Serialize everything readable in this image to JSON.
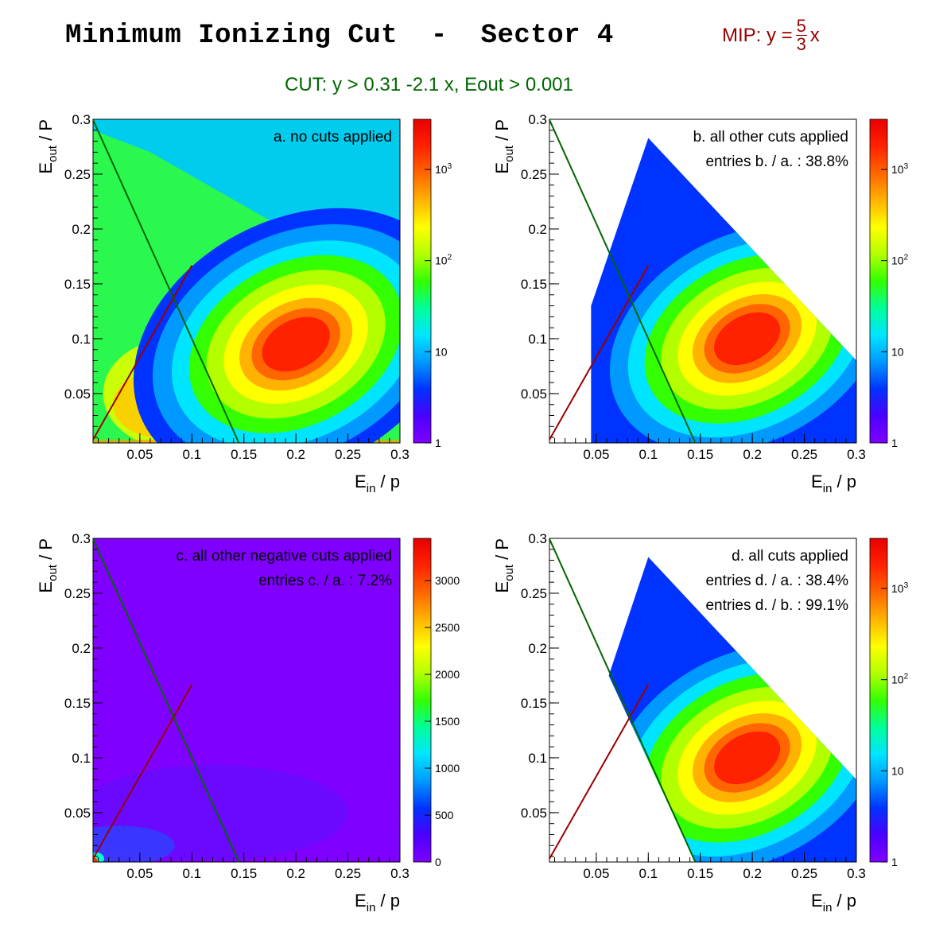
{
  "header": {
    "title": "Minimum Ionizing Cut  -  Sector 4",
    "mip_prefix": "MIP:  y =",
    "mip_num": "5",
    "mip_den": "3",
    "mip_suffix": "x",
    "cut_label": "CUT:  y > 0.31 -2.1 x, Eout > 0.001"
  },
  "colors": {
    "mip_line": "#990000",
    "cut_line": "#006600"
  },
  "chart_data": [
    {
      "type": "heatmap",
      "id": "a",
      "xlabel_main": "E",
      "xlabel_sub": "in",
      "xlabel_tail": " / p",
      "ylabel_main": "E",
      "ylabel_sub": "out",
      "ylabel_tail": " / P",
      "xlim": [
        0.005,
        0.3
      ],
      "ylim": [
        0.005,
        0.3
      ],
      "xticks": [
        "0.05",
        "0.1",
        "0.15",
        "0.2",
        "0.25",
        "0.3"
      ],
      "yticks": [
        "0.05",
        "0.1",
        "0.15",
        "0.2",
        "0.25",
        "0.3"
      ],
      "annotations": [
        "a. no cuts applied"
      ],
      "z_scale": "log",
      "zticks": [
        "1",
        "10",
        "10^2",
        "10^3"
      ],
      "lines": [
        {
          "name": "MIP",
          "x": [
            0.005,
            0.1
          ],
          "y": [
            0.008,
            0.1667
          ]
        },
        {
          "name": "CUT",
          "x": [
            0.005,
            0.1452
          ],
          "y": [
            0.2995,
            0.005
          ]
        }
      ]
    },
    {
      "type": "heatmap",
      "id": "b",
      "xlabel_main": "E",
      "xlabel_sub": "in",
      "xlabel_tail": " / p",
      "ylabel_main": "E",
      "ylabel_sub": "out",
      "ylabel_tail": " / P",
      "xlim": [
        0.005,
        0.3
      ],
      "ylim": [
        0.005,
        0.3
      ],
      "xticks": [
        "0.05",
        "0.1",
        "0.15",
        "0.2",
        "0.25",
        "0.3"
      ],
      "yticks": [
        "0.05",
        "0.1",
        "0.15",
        "0.2",
        "0.25",
        "0.3"
      ],
      "annotations": [
        "b. all other cuts applied",
        "entries b. / a. : 38.8%"
      ],
      "z_scale": "log",
      "zticks": [
        "1",
        "10",
        "10^2",
        "10^3"
      ],
      "lines": [
        {
          "name": "MIP",
          "x": [
            0.005,
            0.1
          ],
          "y": [
            0.008,
            0.1667
          ]
        },
        {
          "name": "CUT",
          "x": [
            0.005,
            0.1452
          ],
          "y": [
            0.2995,
            0.005
          ]
        }
      ]
    },
    {
      "type": "heatmap",
      "id": "c",
      "xlabel_main": "E",
      "xlabel_sub": "in",
      "xlabel_tail": " / p",
      "ylabel_main": "E",
      "ylabel_sub": "out",
      "ylabel_tail": " / P",
      "xlim": [
        0.005,
        0.3
      ],
      "ylim": [
        0.005,
        0.3
      ],
      "xticks": [
        "0.05",
        "0.1",
        "0.15",
        "0.2",
        "0.25",
        "0.3"
      ],
      "yticks": [
        "0.05",
        "0.1",
        "0.15",
        "0.2",
        "0.25",
        "0.3"
      ],
      "annotations": [
        "c. all other negative cuts applied",
        "entries c. / a. : 7.2%"
      ],
      "z_scale": "linear",
      "zlim": [
        0,
        3450
      ],
      "zticks": [
        "0",
        "500",
        "1000",
        "1500",
        "2000",
        "2500",
        "3000"
      ],
      "lines": [
        {
          "name": "MIP",
          "x": [
            0.005,
            0.1
          ],
          "y": [
            0.008,
            0.1667
          ]
        },
        {
          "name": "CUT",
          "x": [
            0.005,
            0.1452
          ],
          "y": [
            0.2995,
            0.005
          ]
        }
      ]
    },
    {
      "type": "heatmap",
      "id": "d",
      "xlabel_main": "E",
      "xlabel_sub": "in",
      "xlabel_tail": " / p",
      "ylabel_main": "E",
      "ylabel_sub": "out",
      "ylabel_tail": " / P",
      "xlim": [
        0.005,
        0.3
      ],
      "ylim": [
        0.005,
        0.3
      ],
      "xticks": [
        "0.05",
        "0.1",
        "0.15",
        "0.2",
        "0.25",
        "0.3"
      ],
      "yticks": [
        "0.05",
        "0.1",
        "0.15",
        "0.2",
        "0.25",
        "0.3"
      ],
      "annotations": [
        "d. all cuts applied",
        "entries d. / a. : 38.4%",
        "entries d. / b. : 99.1%"
      ],
      "z_scale": "log",
      "zticks": [
        "1",
        "10",
        "10^2",
        "10^3"
      ],
      "lines": [
        {
          "name": "MIP",
          "x": [
            0.005,
            0.1
          ],
          "y": [
            0.008,
            0.1667
          ]
        },
        {
          "name": "CUT",
          "x": [
            0.005,
            0.1452
          ],
          "y": [
            0.2995,
            0.005
          ]
        }
      ]
    }
  ]
}
